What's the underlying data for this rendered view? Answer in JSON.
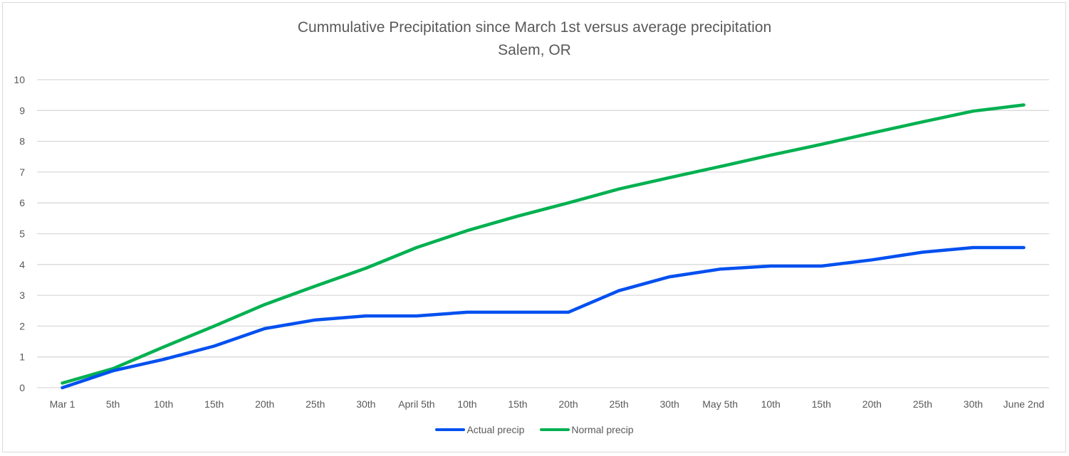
{
  "chart_data": {
    "type": "line",
    "title": "Cummulative Precipitation since March 1st versus average precipitation",
    "subtitle": "Salem, OR",
    "xlabel": "",
    "ylabel": "",
    "ylim": [
      0,
      10
    ],
    "yticks": [
      "0",
      "1",
      "2",
      "3",
      "4",
      "5",
      "6",
      "7",
      "8",
      "9",
      "10"
    ],
    "grid": true,
    "legend_position": "bottom",
    "categories": [
      "Mar 1",
      "5th",
      "10th",
      "15th",
      "20th",
      "25th",
      "30th",
      "April 5th",
      "10th",
      "15th",
      "20th",
      "25th",
      "30th",
      "May 5th",
      "10th",
      "15th",
      "20th",
      "25th",
      "30th",
      "June 2nd"
    ],
    "series": [
      {
        "name": "Actual precip",
        "color": "#0050ef",
        "values": [
          0.0,
          0.55,
          0.92,
          1.35,
          1.92,
          2.2,
          2.33,
          2.33,
          2.45,
          2.45,
          2.45,
          3.15,
          3.6,
          3.85,
          3.95,
          3.95,
          4.15,
          4.4,
          4.55,
          4.55
        ]
      },
      {
        "name": "Normal precip",
        "color": "#00b050",
        "values": [
          0.15,
          0.62,
          1.32,
          2.0,
          2.7,
          3.3,
          3.88,
          4.55,
          5.1,
          5.57,
          6.0,
          6.45,
          6.82,
          7.18,
          7.55,
          7.9,
          8.27,
          8.63,
          8.98,
          9.18
        ]
      }
    ]
  }
}
